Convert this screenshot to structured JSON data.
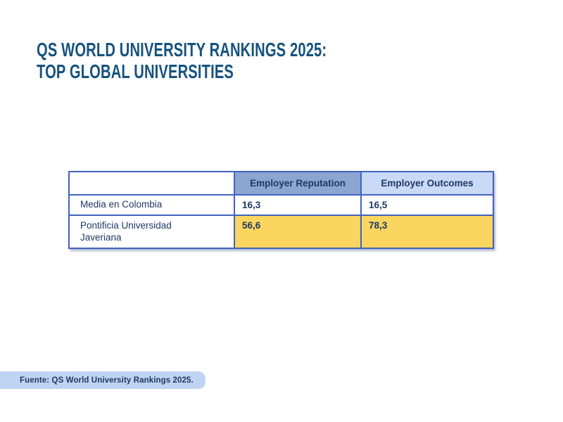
{
  "header": {
    "title_line1": "QS WORLD UNIVERSITY RANKINGS 2025:",
    "title_line2": "TOP GLOBAL UNIVERSITIES"
  },
  "table": {
    "columns": [
      "",
      "Employer Reputation",
      "Employer Outcomes"
    ],
    "rows": [
      {
        "label": "Media en Colombia",
        "values": [
          "16,3",
          "16,5"
        ],
        "highlight": false
      },
      {
        "label": "Pontificia Universidad Javeriana",
        "values": [
          "56,6",
          "78,3"
        ],
        "highlight": true
      }
    ]
  },
  "footer": {
    "source": "Fuente: QS World University Rankings 2025."
  },
  "colors": {
    "title_text": "#16527E",
    "table_border": "#4163BE",
    "table_text": "#1F3864",
    "header_reputation_bg": "#8CA5D2",
    "header_outcomes_bg": "#C9D9F6",
    "highlight_row_bg": "#FAD55F",
    "source_badge_bg": "#BFD4F2",
    "page_bg": "#FFFFFF"
  },
  "chart_data": {
    "type": "table",
    "title": "QS World University Rankings 2025: Top Global Universities",
    "columns": [
      "Employer Reputation",
      "Employer Outcomes"
    ],
    "rows": [
      {
        "name": "Media en Colombia",
        "employer_reputation": 16.3,
        "employer_outcomes": 16.5
      },
      {
        "name": "Pontificia Universidad Javeriana",
        "employer_reputation": 56.6,
        "employer_outcomes": 78.3
      }
    ],
    "notes": "Decimal comma formatting (es-CO). Pontificia Universidad Javeriana row highlighted in yellow."
  }
}
